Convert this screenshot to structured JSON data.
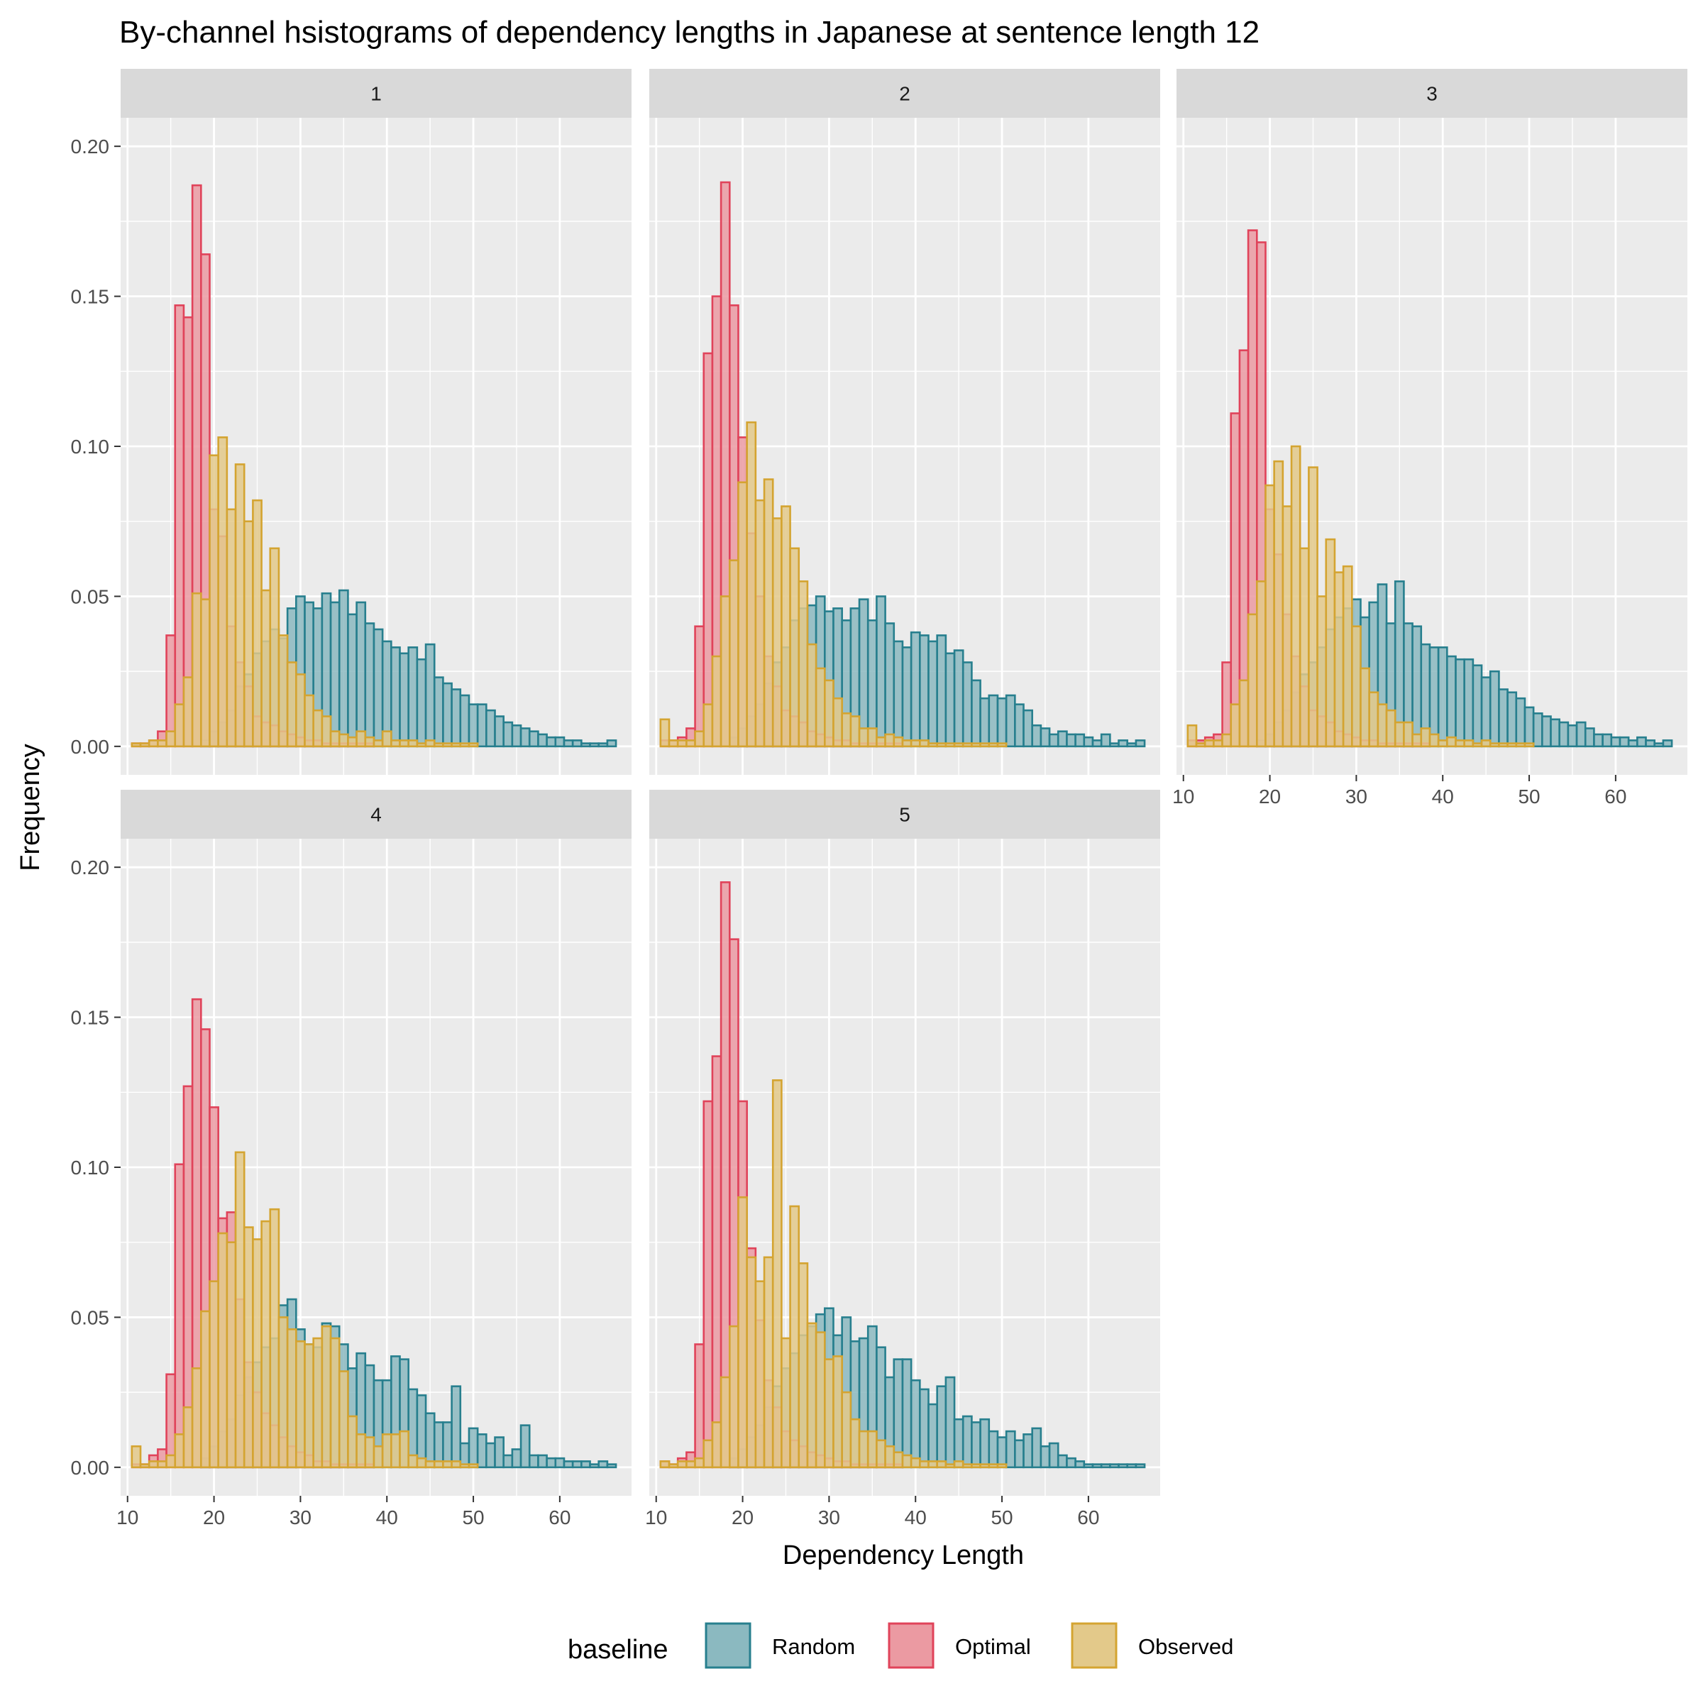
{
  "chart_data": {
    "type": "histogram",
    "title": "By-channel hsistograms of dependency lengths in Japanese at sentence length 12",
    "xlabel": "Dependency Length",
    "ylabel": "Frequency",
    "xlim": [
      9.2,
      68.3
    ],
    "ylim": [
      -0.0095,
      0.2095
    ],
    "x_ticks": [
      10,
      20,
      30,
      40,
      50,
      60
    ],
    "y_ticks": [
      0.0,
      0.05,
      0.1,
      0.15,
      0.2
    ],
    "y_tick_labels": [
      "0.00",
      "0.05",
      "0.10",
      "0.15",
      "0.20"
    ],
    "grid": true,
    "bins": {
      "start": 11,
      "width": 1,
      "count": 56
    },
    "legend": {
      "title": "baseline",
      "position": "bottom",
      "entries": [
        {
          "name": "Random",
          "fill": "#8bb9c0",
          "stroke": "#277f8e"
        },
        {
          "name": "Optimal",
          "fill": "#eb9aa2",
          "stroke": "#e0435a"
        },
        {
          "name": "Observed",
          "fill": "#e3c98a",
          "stroke": "#d4a431"
        }
      ]
    },
    "panels": [
      {
        "label": "1",
        "series": [
          {
            "name": "Random",
            "values": [
              0,
              0,
              0,
              0,
              0,
              0,
              0,
              0,
              0.002,
              0.005,
              0.008,
              0.012,
              0.02,
              0.024,
              0.031,
              0.035,
              0.039,
              0.036,
              0.046,
              0.05,
              0.048,
              0.046,
              0.051,
              0.048,
              0.052,
              0.044,
              0.048,
              0.041,
              0.039,
              0.035,
              0.033,
              0.031,
              0.033,
              0.029,
              0.034,
              0.023,
              0.021,
              0.019,
              0.017,
              0.014,
              0.014,
              0.012,
              0.01,
              0.008,
              0.007,
              0.006,
              0.005,
              0.004,
              0.003,
              0.003,
              0.002,
              0.002,
              0.001,
              0.001,
              0.001,
              0.002
            ]
          },
          {
            "name": "Optimal",
            "values": [
              0.001,
              0.001,
              0.002,
              0.005,
              0.037,
              0.147,
              0.143,
              0.187,
              0.164,
              0.079,
              0.07,
              0.04,
              0.028,
              0.02,
              0.01,
              0.008,
              0.007,
              0.005,
              0.004,
              0.003,
              0.002,
              0.002,
              0.001,
              0.001,
              0.001,
              0.001,
              0.001,
              0.001,
              0,
              0,
              0,
              0,
              0,
              0,
              0,
              0,
              0,
              0,
              0,
              0,
              0,
              0,
              0,
              0,
              0,
              0,
              0,
              0,
              0,
              0,
              0,
              0,
              0,
              0,
              0,
              0
            ]
          },
          {
            "name": "Observed",
            "values": [
              0.001,
              0.001,
              0.002,
              0.002,
              0.005,
              0.014,
              0.023,
              0.051,
              0.049,
              0.097,
              0.103,
              0.079,
              0.094,
              0.075,
              0.082,
              0.052,
              0.066,
              0.037,
              0.028,
              0.024,
              0.017,
              0.012,
              0.01,
              0.005,
              0.004,
              0.003,
              0.005,
              0.003,
              0.002,
              0.005,
              0.002,
              0.002,
              0.002,
              0.001,
              0.002,
              0.001,
              0.001,
              0.001,
              0.001,
              0.001,
              0,
              0,
              0,
              0,
              0,
              0,
              0,
              0,
              0,
              0,
              0,
              0,
              0,
              0,
              0,
              0
            ]
          }
        ]
      },
      {
        "label": "2",
        "series": [
          {
            "name": "Random",
            "values": [
              0,
              0,
              0,
              0,
              0,
              0,
              0,
              0,
              0.003,
              0.006,
              0.01,
              0.014,
              0.021,
              0.028,
              0.033,
              0.042,
              0.046,
              0.047,
              0.05,
              0.045,
              0.046,
              0.042,
              0.046,
              0.049,
              0.042,
              0.05,
              0.041,
              0.035,
              0.033,
              0.038,
              0.037,
              0.035,
              0.037,
              0.031,
              0.032,
              0.028,
              0.022,
              0.016,
              0.017,
              0.016,
              0.017,
              0.014,
              0.012,
              0.007,
              0.006,
              0.004,
              0.005,
              0.004,
              0.004,
              0.003,
              0.002,
              0.004,
              0.001,
              0.002,
              0.001,
              0.002
            ]
          },
          {
            "name": "Optimal",
            "values": [
              0.002,
              0.002,
              0.003,
              0.006,
              0.04,
              0.131,
              0.15,
              0.188,
              0.147,
              0.103,
              0.071,
              0.05,
              0.03,
              0.02,
              0.012,
              0.01,
              0.008,
              0.005,
              0.004,
              0.003,
              0.002,
              0.002,
              0.001,
              0.001,
              0.001,
              0.001,
              0.001,
              0.001,
              0,
              0,
              0,
              0,
              0,
              0,
              0,
              0,
              0,
              0,
              0,
              0,
              0,
              0,
              0,
              0,
              0,
              0,
              0,
              0,
              0,
              0,
              0,
              0,
              0,
              0,
              0,
              0
            ]
          },
          {
            "name": "Observed",
            "values": [
              0.009,
              0.002,
              0.002,
              0.002,
              0.005,
              0.014,
              0.03,
              0.05,
              0.062,
              0.088,
              0.108,
              0.082,
              0.089,
              0.076,
              0.08,
              0.066,
              0.055,
              0.034,
              0.026,
              0.022,
              0.016,
              0.011,
              0.01,
              0.006,
              0.006,
              0.003,
              0.004,
              0.003,
              0.002,
              0.002,
              0.002,
              0.001,
              0.001,
              0.001,
              0.001,
              0.001,
              0.001,
              0.001,
              0.001,
              0.001,
              0,
              0,
              0,
              0,
              0,
              0,
              0,
              0,
              0,
              0,
              0,
              0,
              0,
              0,
              0,
              0
            ]
          }
        ]
      },
      {
        "label": "3",
        "series": [
          {
            "name": "Random",
            "values": [
              0,
              0,
              0,
              0,
              0,
              0,
              0,
              0,
              0.002,
              0.004,
              0.008,
              0.012,
              0.018,
              0.024,
              0.028,
              0.033,
              0.039,
              0.043,
              0.046,
              0.049,
              0.043,
              0.048,
              0.054,
              0.041,
              0.055,
              0.041,
              0.04,
              0.034,
              0.033,
              0.033,
              0.03,
              0.029,
              0.029,
              0.027,
              0.023,
              0.025,
              0.019,
              0.018,
              0.016,
              0.013,
              0.011,
              0.01,
              0.009,
              0.008,
              0.007,
              0.008,
              0.006,
              0.004,
              0.004,
              0.003,
              0.003,
              0.002,
              0.003,
              0.002,
              0.001,
              0.002
            ]
          },
          {
            "name": "Optimal",
            "values": [
              0.002,
              0.002,
              0.003,
              0.004,
              0.028,
              0.111,
              0.132,
              0.172,
              0.168,
              0.079,
              0.064,
              0.044,
              0.03,
              0.02,
              0.012,
              0.01,
              0.008,
              0.005,
              0.004,
              0.003,
              0.002,
              0.002,
              0.001,
              0.001,
              0.001,
              0.001,
              0.001,
              0.001,
              0,
              0,
              0,
              0,
              0,
              0,
              0,
              0,
              0,
              0,
              0,
              0,
              0,
              0,
              0,
              0,
              0,
              0,
              0,
              0,
              0,
              0,
              0,
              0,
              0,
              0,
              0,
              0
            ]
          },
          {
            "name": "Observed",
            "values": [
              0.007,
              0.001,
              0.002,
              0.002,
              0.004,
              0.014,
              0.022,
              0.044,
              0.055,
              0.087,
              0.095,
              0.08,
              0.1,
              0.066,
              0.093,
              0.05,
              0.069,
              0.058,
              0.06,
              0.04,
              0.026,
              0.018,
              0.014,
              0.012,
              0.008,
              0.008,
              0.004,
              0.006,
              0.004,
              0.002,
              0.003,
              0.002,
              0.002,
              0.001,
              0.002,
              0.001,
              0.001,
              0.001,
              0.001,
              0.001,
              0,
              0,
              0,
              0,
              0,
              0,
              0,
              0,
              0,
              0,
              0,
              0,
              0,
              0,
              0,
              0
            ]
          }
        ]
      },
      {
        "label": "4",
        "series": [
          {
            "name": "Random",
            "values": [
              0,
              0,
              0,
              0,
              0,
              0,
              0,
              0,
              0.003,
              0.007,
              0.012,
              0.016,
              0.024,
              0.03,
              0.035,
              0.04,
              0.043,
              0.054,
              0.056,
              0.046,
              0.041,
              0.04,
              0.048,
              0.047,
              0.041,
              0.033,
              0.038,
              0.034,
              0.029,
              0.029,
              0.037,
              0.036,
              0.026,
              0.024,
              0.018,
              0.015,
              0.015,
              0.027,
              0.008,
              0.013,
              0.011,
              0.008,
              0.01,
              0.004,
              0.006,
              0.014,
              0.004,
              0.004,
              0.003,
              0.003,
              0.002,
              0.002,
              0.002,
              0.001,
              0.002,
              0.001
            ]
          },
          {
            "name": "Optimal",
            "values": [
              0.001,
              0.001,
              0.004,
              0.006,
              0.031,
              0.101,
              0.127,
              0.156,
              0.146,
              0.12,
              0.083,
              0.085,
              0.056,
              0.035,
              0.025,
              0.018,
              0.014,
              0.01,
              0.007,
              0.005,
              0.004,
              0.002,
              0.002,
              0.001,
              0.001,
              0.001,
              0.001,
              0.001,
              0,
              0,
              0,
              0,
              0,
              0,
              0,
              0,
              0,
              0,
              0,
              0,
              0,
              0,
              0,
              0,
              0,
              0,
              0,
              0,
              0,
              0,
              0,
              0,
              0,
              0,
              0,
              0
            ]
          },
          {
            "name": "Observed",
            "values": [
              0.007,
              0.001,
              0.002,
              0.002,
              0.004,
              0.011,
              0.02,
              0.033,
              0.052,
              0.062,
              0.078,
              0.075,
              0.105,
              0.08,
              0.076,
              0.082,
              0.086,
              0.05,
              0.046,
              0.042,
              0.041,
              0.043,
              0.047,
              0.043,
              0.032,
              0.017,
              0.011,
              0.01,
              0.007,
              0.011,
              0.011,
              0.012,
              0.004,
              0.003,
              0.002,
              0.002,
              0.002,
              0.002,
              0.001,
              0.001,
              0,
              0,
              0,
              0,
              0,
              0,
              0,
              0,
              0,
              0,
              0,
              0,
              0,
              0,
              0,
              0
            ]
          }
        ]
      },
      {
        "label": "5",
        "series": [
          {
            "name": "Random",
            "values": [
              0,
              0,
              0,
              0,
              0,
              0,
              0,
              0,
              0.003,
              0.006,
              0.01,
              0.014,
              0.02,
              0.027,
              0.033,
              0.038,
              0.044,
              0.047,
              0.051,
              0.053,
              0.044,
              0.05,
              0.042,
              0.043,
              0.047,
              0.04,
              0.03,
              0.036,
              0.036,
              0.029,
              0.026,
              0.021,
              0.027,
              0.03,
              0.016,
              0.017,
              0.015,
              0.016,
              0.012,
              0.01,
              0.012,
              0.009,
              0.011,
              0.013,
              0.007,
              0.008,
              0.004,
              0.003,
              0.002,
              0.001,
              0.001,
              0.001,
              0.001,
              0.001,
              0.001,
              0.001
            ]
          },
          {
            "name": "Optimal",
            "values": [
              0.002,
              0.001,
              0.003,
              0.005,
              0.041,
              0.122,
              0.137,
              0.195,
              0.176,
              0.122,
              0.073,
              0.049,
              0.029,
              0.02,
              0.012,
              0.009,
              0.007,
              0.005,
              0.004,
              0.003,
              0.002,
              0.002,
              0.001,
              0.001,
              0.001,
              0.001,
              0.001,
              0.001,
              0,
              0,
              0,
              0,
              0,
              0,
              0,
              0,
              0,
              0,
              0,
              0,
              0,
              0,
              0,
              0,
              0,
              0,
              0,
              0,
              0,
              0,
              0,
              0,
              0,
              0,
              0,
              0
            ]
          },
          {
            "name": "Observed",
            "values": [
              0.002,
              0.001,
              0.002,
              0.002,
              0.003,
              0.009,
              0.015,
              0.03,
              0.047,
              0.09,
              0.07,
              0.062,
              0.07,
              0.129,
              0.043,
              0.087,
              0.068,
              0.048,
              0.045,
              0.036,
              0.037,
              0.025,
              0.016,
              0.012,
              0.012,
              0.009,
              0.007,
              0.005,
              0.004,
              0.003,
              0.002,
              0.002,
              0.002,
              0.001,
              0.002,
              0.001,
              0.001,
              0.001,
              0.001,
              0.001,
              0,
              0,
              0,
              0,
              0,
              0,
              0,
              0,
              0,
              0,
              0,
              0,
              0,
              0,
              0,
              0
            ]
          }
        ]
      }
    ]
  }
}
